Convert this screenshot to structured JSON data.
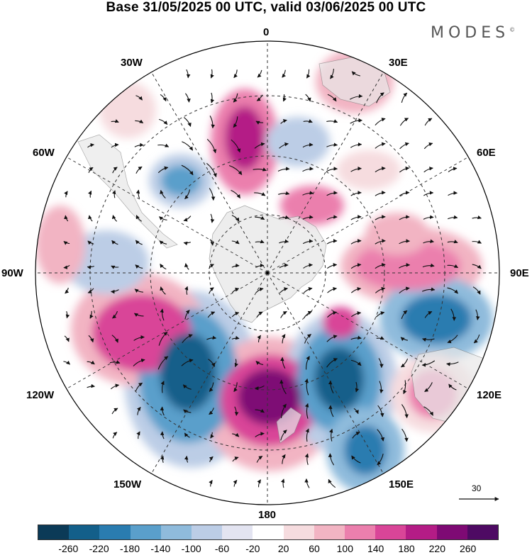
{
  "title": "Base 31/05/2025 00 UTC, valid 03/06/2025 00 UTC",
  "brand": {
    "name": "MODES",
    "mark": "©"
  },
  "longitude_labels": {
    "top": "0",
    "top_left": "30W",
    "top_right": "30E",
    "upper_left": "60W",
    "upper_right": "60E",
    "left": "90W",
    "right": "90E",
    "lower_left": "120W",
    "lower_right": "120E",
    "bottom_left": "150W",
    "bottom_right": "150E",
    "bottom": "180"
  },
  "colorbar": {
    "ticks": [
      "-260",
      "-220",
      "-180",
      "-140",
      "-100",
      "-60",
      "-20",
      "20",
      "60",
      "100",
      "140",
      "180",
      "220",
      "260"
    ],
    "colors": [
      "#0b3a57",
      "#135f8a",
      "#2a7cb0",
      "#5a9fcb",
      "#8fbbdc",
      "#bccde6",
      "#e3e4f1",
      "#ffffff",
      "#f6dcdf",
      "#f2b4c3",
      "#eb7fad",
      "#d94598",
      "#b41c86",
      "#7e0a74",
      "#4e0a63"
    ]
  },
  "vector_scale": {
    "label": "30"
  },
  "colors": {
    "land": "#e9e9e9",
    "grid": "#333333"
  }
}
